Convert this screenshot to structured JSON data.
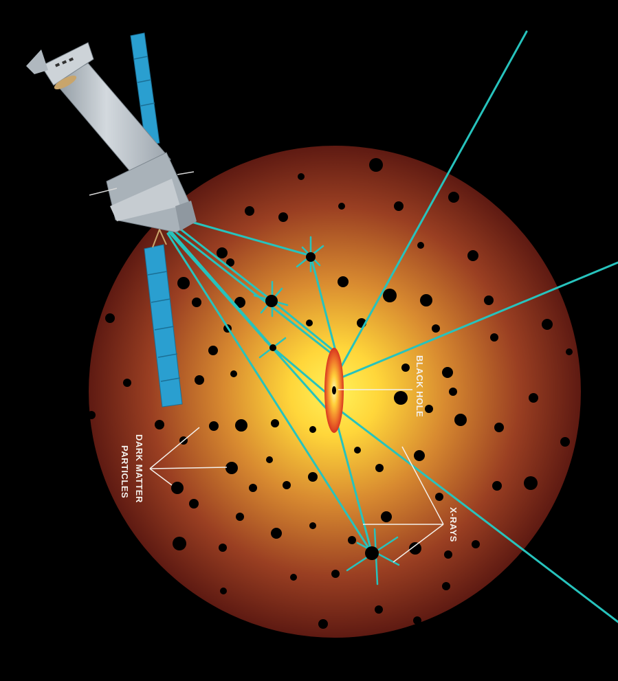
{
  "labels": {
    "black_hole": "BLACK HOLE",
    "dark_matter_line1": "DARK MATTER",
    "dark_matter_line2": "PARTICLES",
    "xrays": "X-RAYS"
  },
  "colors": {
    "background": "#000000",
    "halo_core": "#ffe23a",
    "halo_mid": "#d9922e",
    "halo_edge": "#6b1c12",
    "xray": "#27c3bd",
    "particle": "#000000",
    "solar_panel": "#2a9fd0",
    "telescope_body": "#b9c2c9",
    "disk_outer": "#e8502a",
    "disk_inner": "#ffd23a",
    "leader_line": "#f4f1ec"
  },
  "icons": [
    "telescope-icon",
    "solar-panel-icon",
    "black-hole-disk-icon",
    "dark-matter-particle-icon"
  ]
}
